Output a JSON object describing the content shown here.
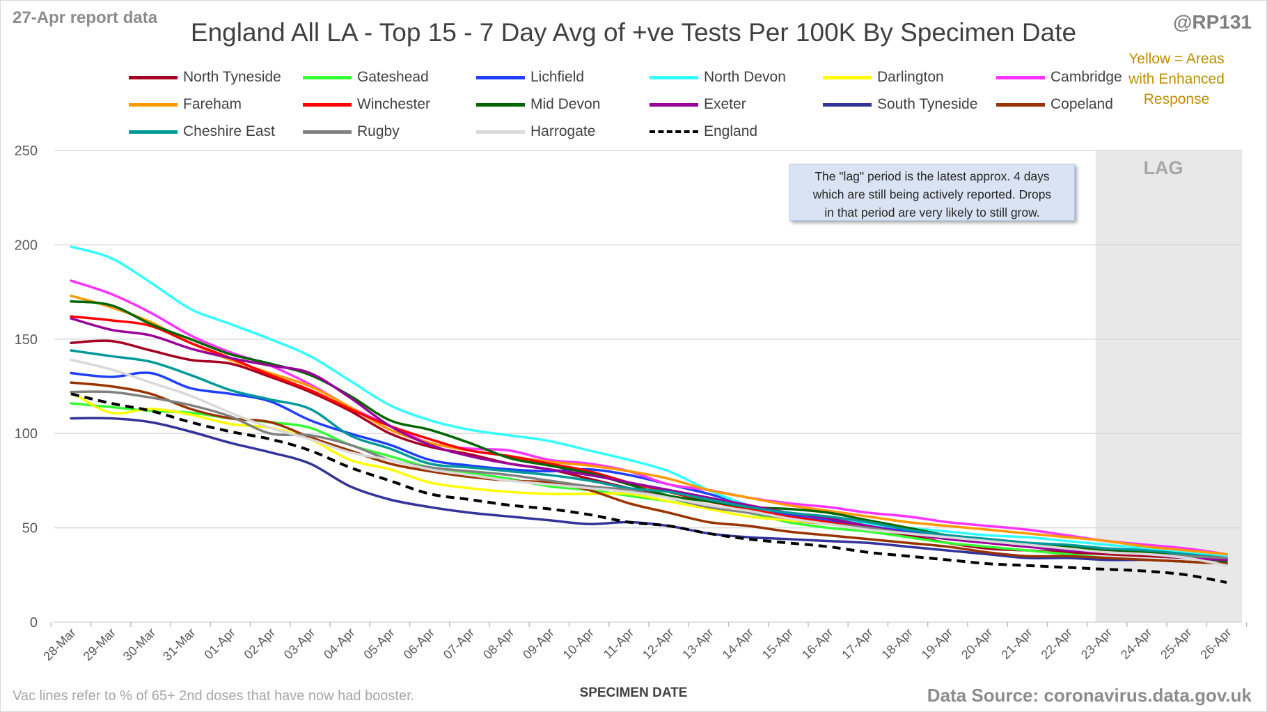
{
  "header": {
    "report_date": "27-Apr report data",
    "title": "England All LA - Top 15 - 7 Day Avg of +ve Tests Per 100K By Specimen Date",
    "handle": "@RP131",
    "enhanced_note": [
      "Yellow = Areas",
      "with Enhanced",
      "Response"
    ]
  },
  "annotation": {
    "lag_label": "LAG",
    "lag_note": [
      "The \"lag\" period is the latest approx. 4 days",
      "which are still being actively reported.  Drops",
      "in that period are very likely to still grow."
    ]
  },
  "footer": {
    "x_axis_title": "SPECIMEN DATE",
    "vac_note": "Vac lines refer to % of 65+ 2nd doses that have now had booster.",
    "data_source": "Data Source: coronavirus.data.gov.uk"
  },
  "colors": {
    "grid": "#d9d9d9",
    "lag_band": "#e8e8e8",
    "axis": "#bfbfbf"
  },
  "chart_data": {
    "type": "line",
    "title": "England All LA - Top 15 - 7 Day Avg of +ve Tests Per 100K By Specimen Date",
    "xlabel": "SPECIMEN DATE",
    "ylabel": "",
    "ylim": [
      0,
      250
    ],
    "yticks": [
      0,
      50,
      100,
      150,
      200,
      250
    ],
    "grid": true,
    "legend_position": "top",
    "lag_period": [
      "23-Apr",
      "26-Apr"
    ],
    "x": [
      "28-Mar",
      "29-Mar",
      "30-Mar",
      "31-Mar",
      "01-Apr",
      "02-Apr",
      "03-Apr",
      "04-Apr",
      "05-Apr",
      "06-Apr",
      "07-Apr",
      "08-Apr",
      "09-Apr",
      "10-Apr",
      "11-Apr",
      "12-Apr",
      "13-Apr",
      "14-Apr",
      "15-Apr",
      "16-Apr",
      "17-Apr",
      "18-Apr",
      "19-Apr",
      "20-Apr",
      "21-Apr",
      "22-Apr",
      "23-Apr",
      "24-Apr",
      "25-Apr",
      "26-Apr"
    ],
    "series": [
      {
        "name": "North Tyneside",
        "color": "#a50021",
        "values": [
          148,
          149,
          144,
          139,
          137,
          130,
          122,
          112,
          100,
          93,
          89,
          84,
          81,
          76,
          71,
          66,
          62,
          58,
          54,
          52,
          49,
          46,
          42,
          39,
          38,
          37,
          36,
          35,
          34,
          33
        ]
      },
      {
        "name": "Gateshead",
        "color": "#33ff33",
        "values": [
          116,
          114,
          112,
          111,
          108,
          106,
          103,
          94,
          88,
          82,
          79,
          76,
          72,
          70,
          67,
          64,
          61,
          58,
          53,
          50,
          48,
          45,
          42,
          40,
          38,
          36,
          34,
          33,
          32,
          31
        ]
      },
      {
        "name": "Lichfield",
        "color": "#1f3fff",
        "values": [
          132,
          130,
          132,
          124,
          121,
          117,
          107,
          100,
          94,
          86,
          83,
          81,
          80,
          81,
          78,
          73,
          68,
          62,
          57,
          54,
          51,
          48,
          46,
          44,
          42,
          40,
          38,
          37,
          35,
          33
        ]
      },
      {
        "name": "North Devon",
        "color": "#33ffff",
        "values": [
          199,
          193,
          180,
          166,
          158,
          150,
          141,
          128,
          115,
          107,
          102,
          99,
          96,
          91,
          86,
          80,
          70,
          62,
          58,
          55,
          52,
          50,
          48,
          46,
          45,
          43,
          41,
          39,
          37,
          35
        ]
      },
      {
        "name": "Darlington",
        "color": "#ffff00",
        "values": [
          122,
          111,
          113,
          110,
          105,
          103,
          97,
          86,
          81,
          74,
          71,
          69,
          68,
          68,
          68,
          64,
          60,
          56,
          54,
          52,
          49,
          47,
          45,
          43,
          41,
          40,
          38,
          37,
          35,
          33
        ]
      },
      {
        "name": "Cambridge",
        "color": "#ff33ff",
        "values": [
          181,
          174,
          164,
          152,
          143,
          136,
          126,
          114,
          104,
          95,
          92,
          91,
          86,
          84,
          80,
          73,
          70,
          66,
          63,
          61,
          58,
          56,
          53,
          51,
          49,
          46,
          43,
          41,
          39,
          36
        ]
      },
      {
        "name": "Fareham",
        "color": "#ff9900",
        "values": [
          173,
          167,
          159,
          148,
          139,
          132,
          125,
          114,
          102,
          95,
          91,
          88,
          85,
          83,
          80,
          76,
          70,
          66,
          62,
          59,
          56,
          53,
          51,
          49,
          47,
          45,
          43,
          40,
          38,
          36
        ]
      },
      {
        "name": "Winchester",
        "color": "#ff0000",
        "values": [
          162,
          160,
          157,
          148,
          140,
          131,
          123,
          113,
          104,
          97,
          91,
          88,
          84,
          80,
          74,
          69,
          64,
          60,
          56,
          53,
          50,
          47,
          45,
          42,
          40,
          39,
          37,
          36,
          35,
          34
        ]
      },
      {
        "name": "Mid Devon",
        "color": "#006600",
        "values": [
          170,
          168,
          158,
          150,
          142,
          137,
          131,
          120,
          107,
          102,
          95,
          87,
          83,
          79,
          73,
          67,
          64,
          61,
          60,
          58,
          54,
          50,
          46,
          44,
          42,
          40,
          38,
          37,
          35,
          32
        ]
      },
      {
        "name": "Exeter",
        "color": "#990099",
        "values": [
          161,
          155,
          152,
          145,
          140,
          136,
          132,
          119,
          104,
          94,
          88,
          84,
          81,
          78,
          74,
          70,
          66,
          62,
          58,
          55,
          51,
          47,
          44,
          42,
          40,
          38,
          37,
          36,
          34,
          33
        ]
      },
      {
        "name": "South Tyneside",
        "color": "#333399",
        "values": [
          108,
          108,
          106,
          101,
          95,
          90,
          84,
          72,
          65,
          61,
          58,
          56,
          54,
          52,
          53,
          51,
          47,
          45,
          44,
          43,
          42,
          40,
          38,
          36,
          34,
          34,
          33,
          33,
          32,
          31
        ]
      },
      {
        "name": "Copeland",
        "color": "#993300",
        "values": [
          127,
          125,
          121,
          113,
          108,
          106,
          98,
          91,
          84,
          80,
          77,
          75,
          74,
          70,
          63,
          58,
          53,
          51,
          48,
          46,
          44,
          42,
          40,
          37,
          35,
          35,
          34,
          33,
          32,
          31
        ]
      },
      {
        "name": "Cheshire East",
        "color": "#009999",
        "values": [
          144,
          141,
          138,
          131,
          123,
          118,
          113,
          99,
          92,
          84,
          82,
          80,
          78,
          75,
          71,
          69,
          65,
          61,
          58,
          56,
          53,
          49,
          46,
          44,
          42,
          41,
          39,
          38,
          36,
          34
        ]
      },
      {
        "name": "Rugby",
        "color": "#808080",
        "values": [
          122,
          122,
          119,
          115,
          109,
          100,
          99,
          94,
          86,
          82,
          80,
          78,
          75,
          72,
          70,
          66,
          61,
          58,
          55,
          52,
          50,
          47,
          45,
          43,
          41,
          39,
          37,
          36,
          35,
          34
        ]
      },
      {
        "name": "Harrogate",
        "color": "#d9d9d9",
        "values": [
          139,
          134,
          127,
          120,
          111,
          103,
          97,
          90,
          86,
          81,
          78,
          75,
          73,
          71,
          69,
          66,
          62,
          59,
          55,
          52,
          49,
          47,
          45,
          43,
          41,
          39,
          37,
          36,
          34,
          30
        ]
      },
      {
        "name": "England",
        "color": "#000000",
        "dashed": true,
        "values": [
          121,
          116,
          112,
          106,
          101,
          97,
          91,
          82,
          75,
          68,
          65,
          62,
          60,
          57,
          53,
          51,
          47,
          44,
          42,
          40,
          37,
          35,
          33,
          31,
          30,
          29,
          28,
          27,
          25,
          21
        ]
      }
    ]
  }
}
